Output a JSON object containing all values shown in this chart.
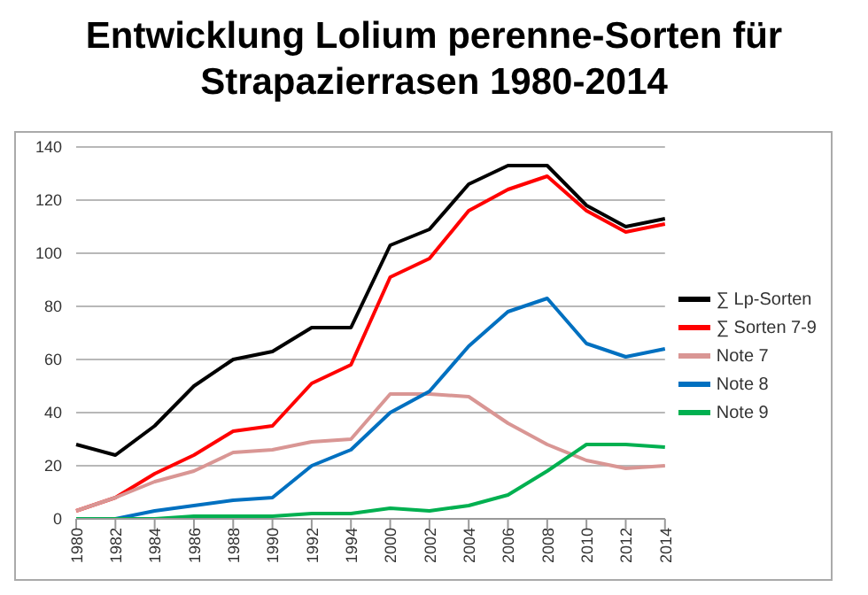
{
  "chart_data": {
    "type": "line",
    "title": "Entwicklung Lolium perenne-Sorten für Strapazierrasen 1980-2014",
    "categories": [
      "1980",
      "1982",
      "1984",
      "1986",
      "1988",
      "1990",
      "1992",
      "1994",
      "2000",
      "2002",
      "2004",
      "2006",
      "2008",
      "2010",
      "2012",
      "2014"
    ],
    "series": [
      {
        "name": "∑ Lp-Sorten",
        "color": "#000000",
        "values": [
          28,
          24,
          35,
          50,
          60,
          63,
          72,
          72,
          103,
          109,
          126,
          133,
          133,
          118,
          110,
          113
        ]
      },
      {
        "name": "∑ Sorten 7-9",
        "color": "#ff0000",
        "values": [
          3,
          8,
          17,
          24,
          33,
          35,
          51,
          58,
          91,
          98,
          116,
          124,
          129,
          116,
          108,
          111
        ]
      },
      {
        "name": "Note 7",
        "color": "#d99694",
        "values": [
          3,
          8,
          14,
          18,
          25,
          26,
          29,
          30,
          47,
          47,
          46,
          36,
          28,
          22,
          19,
          20
        ]
      },
      {
        "name": "Note 8",
        "color": "#0070c0",
        "values": [
          0,
          0,
          3,
          5,
          7,
          8,
          20,
          26,
          40,
          48,
          65,
          78,
          83,
          66,
          61,
          64
        ]
      },
      {
        "name": "Note 9",
        "color": "#00b050",
        "values": [
          0,
          0,
          0,
          1,
          1,
          1,
          2,
          2,
          4,
          3,
          5,
          9,
          18,
          28,
          28,
          27
        ]
      }
    ],
    "ylim": [
      0,
      140
    ],
    "yticks": [
      0,
      20,
      40,
      60,
      80,
      100,
      120,
      140
    ],
    "grid": "y",
    "legend": "right",
    "marker": "none"
  }
}
